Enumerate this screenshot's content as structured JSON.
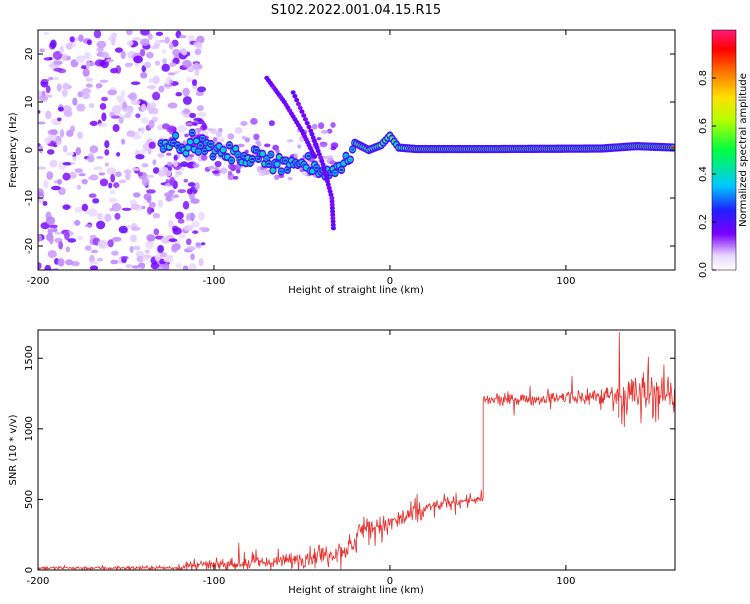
{
  "title": "S102.2022.001.04.15.R15",
  "chart_data": [
    {
      "type": "heatmap",
      "xlabel": "Height of straight line (km)",
      "ylabel": "Frequency (Hz)",
      "xlim": [
        -200,
        162
      ],
      "ylim": [
        -25,
        25
      ],
      "x_ticks": [
        -200,
        -100,
        0,
        100
      ],
      "x_tick_labels": [
        "-200",
        "-100",
        "0",
        "100"
      ],
      "y_ticks": [
        -20,
        -10,
        0,
        10,
        20
      ],
      "y_tick_labels": [
        "-20",
        "-10",
        "0",
        "10",
        "20"
      ],
      "colorbar": {
        "label": "Normalized spectral amplitude",
        "range": [
          0,
          1
        ],
        "ticks": [
          0.0,
          0.2,
          0.4,
          0.6,
          0.8
        ],
        "tick_labels": [
          "0.0",
          "0.2",
          "0.4",
          "0.6",
          "0.8"
        ]
      },
      "features": [
        {
          "kind": "noise",
          "x_range": [
            -200,
            -115
          ],
          "y_range": [
            -25,
            25
          ],
          "amplitude": 0.05
        },
        {
          "kind": "line",
          "points": [
            [
              -130,
              2
            ],
            [
              -110,
              1
            ],
            [
              -90,
              -1
            ],
            [
              -70,
              -2
            ],
            [
              -50,
              -3
            ],
            [
              -38,
              -5
            ],
            [
              -30,
              -4
            ],
            [
              -25,
              -2
            ],
            [
              -20,
              1.5
            ],
            [
              -12,
              0
            ],
            [
              -5,
              1
            ],
            [
              0,
              3
            ],
            [
              5,
              0.5
            ],
            [
              15,
              0.2
            ],
            [
              60,
              0.2
            ],
            [
              120,
              0.3
            ],
            [
              140,
              0.8
            ],
            [
              162,
              0.5
            ]
          ],
          "amplitude": 0.5
        },
        {
          "kind": "streak",
          "points": [
            [
              -70,
              15
            ],
            [
              -60,
              10
            ],
            [
              -50,
              4
            ],
            [
              -42,
              -2
            ]
          ],
          "amplitude": 0.15
        },
        {
          "kind": "streak",
          "points": [
            [
              -55,
              12
            ],
            [
              -45,
              4
            ],
            [
              -38,
              -3
            ],
            [
              -33,
              -10
            ],
            [
              -32,
              -17
            ]
          ],
          "amplitude": 0.15
        }
      ],
      "grid": false
    },
    {
      "type": "line",
      "xlabel": "Height of straight line (km)",
      "ylabel": "SNR (10 * v/v)",
      "xlim": [
        -200,
        162
      ],
      "ylim": [
        0,
        1700
      ],
      "x_ticks": [
        -200,
        -100,
        0,
        100
      ],
      "x_tick_labels": [
        "-200",
        "-100",
        "0",
        "100"
      ],
      "y_ticks": [
        0,
        500,
        1000,
        1500
      ],
      "y_tick_labels": [
        "0",
        "500",
        "1000",
        "1500"
      ],
      "line_color": "#e8312e",
      "series_profile": [
        {
          "x": [
            -200,
            -120
          ],
          "mean": [
            15,
            15
          ],
          "noise": 8
        },
        {
          "x": [
            -120,
            -95
          ],
          "mean": [
            20,
            40
          ],
          "noise": 25
        },
        {
          "x": [
            -95,
            -60
          ],
          "mean": [
            40,
            60
          ],
          "noise": 35
        },
        {
          "x": [
            -60,
            -30
          ],
          "mean": [
            60,
            130
          ],
          "noise": 45
        },
        {
          "x": [
            -30,
            -19
          ],
          "mean": [
            130,
            170
          ],
          "noise": 50
        },
        {
          "x": [
            -19,
            0
          ],
          "mean": [
            290,
            320
          ],
          "noise": 50
        },
        {
          "x": [
            0,
            20
          ],
          "mean": [
            330,
            420
          ],
          "noise": 60
        },
        {
          "x": [
            20,
            40
          ],
          "mean": [
            440,
            490
          ],
          "noise": 30
        },
        {
          "x": [
            40,
            53
          ],
          "mean": [
            490,
            500
          ],
          "noise": 20
        },
        {
          "x": [
            53,
            100
          ],
          "mean": [
            1200,
            1220
          ],
          "noise": 30
        },
        {
          "x": [
            100,
            130
          ],
          "mean": [
            1220,
            1240
          ],
          "noise": 50
        },
        {
          "x": [
            130,
            162
          ],
          "mean": [
            1240,
            1250
          ],
          "noise": 130
        }
      ],
      "grid": false
    }
  ]
}
